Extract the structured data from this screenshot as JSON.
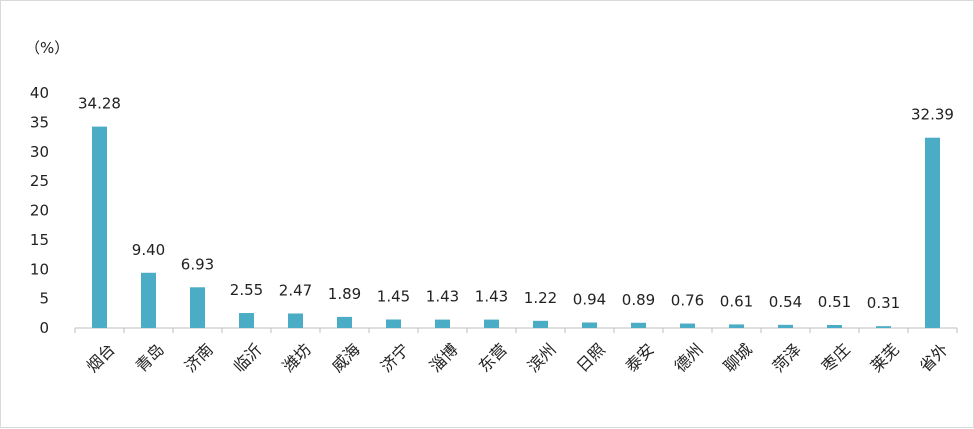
{
  "chart_data": {
    "type": "bar",
    "unit_label": "（%）",
    "categories": [
      "烟台",
      "青岛",
      "济南",
      "临沂",
      "潍坊",
      "威海",
      "济宁",
      "淄博",
      "东营",
      "滨州",
      "日照",
      "泰安",
      "德州",
      "聊城",
      "菏泽",
      "枣庄",
      "莱芜",
      "省外"
    ],
    "values": [
      34.28,
      9.4,
      6.93,
      2.55,
      2.47,
      1.89,
      1.45,
      1.43,
      1.43,
      1.22,
      0.94,
      0.89,
      0.76,
      0.61,
      0.54,
      0.51,
      0.31,
      32.39
    ],
    "data_labels": [
      "34.28",
      "9.40",
      "6.93",
      "2.55",
      "2.47",
      "1.89",
      "1.45",
      "1.43",
      "1.43",
      "1.22",
      "0.94",
      "0.89",
      "0.76",
      "0.61",
      "0.54",
      "0.51",
      "0.31",
      "32.39"
    ],
    "y_ticks": [
      "0",
      "5",
      "10",
      "15",
      "20",
      "25",
      "30",
      "35",
      "40"
    ],
    "ylim": [
      0,
      40
    ],
    "grid": false,
    "legend": "none",
    "bar_color": "#4BACC6",
    "axis_color": "#bfbfbf"
  }
}
